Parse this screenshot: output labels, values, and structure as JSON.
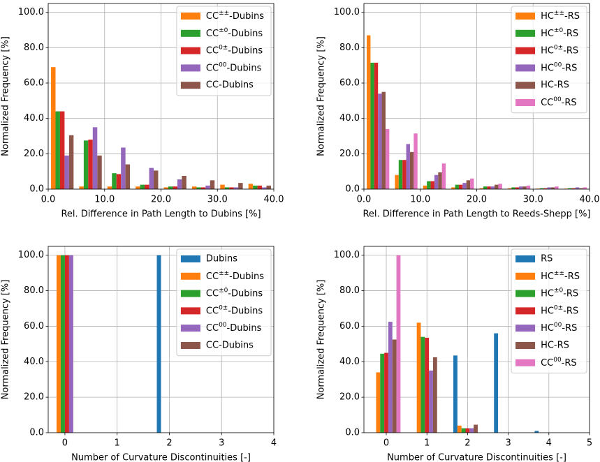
{
  "chart_data": [
    {
      "type": "histogram",
      "xlabel": "Rel. Difference in Path Length to Dubins [%]",
      "ylabel": "Normalized Frequency [%]",
      "bins": [
        0,
        5,
        10,
        15,
        20,
        25,
        30,
        35,
        40
      ],
      "series": [
        {
          "name": "CC±±-Dubins",
          "color": "#ff7f0e",
          "values": [
            69,
            1.5,
            1.5,
            1.5,
            1,
            1.5,
            2.5,
            3
          ]
        },
        {
          "name": "CC±0-Dubins",
          "color": "#2ca02c",
          "values": [
            44,
            27.5,
            9,
            2.5,
            1.5,
            1,
            1,
            2
          ]
        },
        {
          "name": "CC0±-Dubins",
          "color": "#d62728",
          "values": [
            44,
            28,
            8.5,
            2.5,
            1.5,
            1,
            1,
            2
          ]
        },
        {
          "name": "CC00-Dubins",
          "color": "#9467bd",
          "values": [
            19,
            35,
            23.5,
            12,
            5.5,
            2,
            1,
            1
          ]
        },
        {
          "name": "CC-Dubins",
          "color": "#8c564b",
          "values": [
            30.5,
            19,
            14,
            10.5,
            7.5,
            5,
            3.5,
            2
          ]
        }
      ],
      "xlim": [
        0,
        40
      ],
      "ylim": [
        0,
        105
      ],
      "xticks": [
        {
          "value": 0,
          "label": "0.0"
        },
        {
          "value": 10,
          "label": "10.0"
        },
        {
          "value": 20,
          "label": "20.0"
        },
        {
          "value": 30,
          "label": "30.0"
        },
        {
          "value": 40,
          "label": "40.0"
        }
      ],
      "yticks": [
        {
          "value": 0,
          "label": "0.0"
        },
        {
          "value": 20,
          "label": "20.0"
        },
        {
          "value": 40,
          "label": "40.0"
        },
        {
          "value": 60,
          "label": "60.0"
        },
        {
          "value": 80,
          "label": "80.0"
        },
        {
          "value": 100,
          "label": "100.0"
        }
      ],
      "grid": true,
      "legend": "upper right"
    },
    {
      "type": "histogram",
      "xlabel": "Rel. Difference in Path Length to Reeds-Shepp [%]",
      "ylabel": "Normalized Frequency [%]",
      "bins": [
        0,
        5,
        10,
        15,
        20,
        25,
        30,
        35,
        40
      ],
      "series": [
        {
          "name": "HC±±-RS",
          "color": "#ff7f0e",
          "values": [
            87,
            8,
            2,
            1,
            0.5,
            0.5,
            0.3,
            0.3
          ]
        },
        {
          "name": "HC±0-RS",
          "color": "#2ca02c",
          "values": [
            71.5,
            16.5,
            4.5,
            2.5,
            1.5,
            1,
            0.5,
            0.5
          ]
        },
        {
          "name": "HC0±-RS",
          "color": "#d62728",
          "values": [
            71.5,
            16.5,
            4.5,
            2.5,
            1.5,
            1,
            0.5,
            0.5
          ]
        },
        {
          "name": "HC00-RS",
          "color": "#9467bd",
          "values": [
            54,
            25.5,
            8,
            3.5,
            1.5,
            1.5,
            1,
            1
          ]
        },
        {
          "name": "HC-RS",
          "color": "#8c564b",
          "values": [
            55,
            21,
            9.5,
            5,
            2.5,
            1.5,
            1,
            0.5
          ]
        },
        {
          "name": "CC00-RS",
          "color": "#e377c2",
          "values": [
            34,
            31.5,
            14.5,
            6,
            3,
            2,
            1.5,
            1
          ]
        }
      ],
      "xlim": [
        0,
        40
      ],
      "ylim": [
        0,
        105
      ],
      "xticks": [
        {
          "value": 0,
          "label": "0.0"
        },
        {
          "value": 10,
          "label": "10.0"
        },
        {
          "value": 20,
          "label": "20.0"
        },
        {
          "value": 30,
          "label": "30.0"
        },
        {
          "value": 40,
          "label": "40.0"
        }
      ],
      "yticks": [
        {
          "value": 0,
          "label": "0.0"
        },
        {
          "value": 20,
          "label": "20.0"
        },
        {
          "value": 40,
          "label": "40.0"
        },
        {
          "value": 60,
          "label": "60.0"
        },
        {
          "value": 80,
          "label": "80.0"
        },
        {
          "value": 100,
          "label": "100.0"
        }
      ],
      "grid": true,
      "legend": "upper right"
    },
    {
      "type": "bar",
      "xlabel": "Number of Curvature Discontinuities [-]",
      "ylabel": "Normalized Frequency [%]",
      "x": [
        0,
        1,
        2,
        3,
        4
      ],
      "series": [
        {
          "name": "Dubins",
          "color": "#1f77b4",
          "values": [
            0,
            0,
            100,
            0,
            0
          ]
        },
        {
          "name": "CC±±-Dubins",
          "color": "#ff7f0e",
          "values": [
            100,
            0,
            0,
            0,
            0
          ]
        },
        {
          "name": "CC±0-Dubins",
          "color": "#2ca02c",
          "values": [
            100,
            0,
            0,
            0,
            0
          ]
        },
        {
          "name": "CC0±-Dubins",
          "color": "#d62728",
          "values": [
            100,
            0,
            0,
            0,
            0
          ]
        },
        {
          "name": "CC00-Dubins",
          "color": "#9467bd",
          "values": [
            100,
            0,
            0,
            0,
            0
          ]
        },
        {
          "name": "CC-Dubins",
          "color": "#8c564b",
          "values": [
            0,
            0,
            0,
            0,
            0
          ]
        }
      ],
      "xlim": [
        -0.32,
        4
      ],
      "ylim": [
        0,
        105
      ],
      "xticks": [
        0,
        1,
        2,
        3,
        4
      ],
      "yticks": [
        {
          "value": 0,
          "label": "0.0"
        },
        {
          "value": 20,
          "label": "20.0"
        },
        {
          "value": 40,
          "label": "40.0"
        },
        {
          "value": 60,
          "label": "60.0"
        },
        {
          "value": 80,
          "label": "80.0"
        },
        {
          "value": 100,
          "label": "100.0"
        }
      ],
      "grid": true,
      "legend": "upper right"
    },
    {
      "type": "bar",
      "xlabel": "Number of Curvature Discontinuities [-]",
      "ylabel": "Normalized Frequency [%]",
      "x": [
        0,
        1,
        2,
        3,
        4,
        5
      ],
      "series": [
        {
          "name": "RS",
          "color": "#1f77b4",
          "values": [
            0,
            0,
            43.5,
            56,
            1,
            0
          ]
        },
        {
          "name": "HC±±-RS",
          "color": "#ff7f0e",
          "values": [
            34,
            62,
            4,
            0,
            0,
            0
          ]
        },
        {
          "name": "HC±0-RS",
          "color": "#2ca02c",
          "values": [
            44.5,
            54,
            2.5,
            0,
            0,
            0
          ]
        },
        {
          "name": "HC0±-RS",
          "color": "#d62728",
          "values": [
            45,
            53.5,
            2.5,
            0,
            0,
            0
          ]
        },
        {
          "name": "HC00-RS",
          "color": "#9467bd",
          "values": [
            62.5,
            35,
            2.5,
            0,
            0,
            0
          ]
        },
        {
          "name": "HC-RS",
          "color": "#8c564b",
          "values": [
            52.5,
            42.5,
            4.5,
            0,
            0,
            0
          ]
        },
        {
          "name": "CC00-RS",
          "color": "#e377c2",
          "values": [
            100,
            0,
            0,
            0,
            0,
            0
          ]
        }
      ],
      "xlim": [
        -0.55,
        5
      ],
      "ylim": [
        0,
        105
      ],
      "xticks": [
        0,
        1,
        2,
        3,
        4,
        5
      ],
      "yticks": [
        {
          "value": 0,
          "label": "0.0"
        },
        {
          "value": 20,
          "label": "20.0"
        },
        {
          "value": 40,
          "label": "40.0"
        },
        {
          "value": 60,
          "label": "60.0"
        },
        {
          "value": 80,
          "label": "80.0"
        },
        {
          "value": 100,
          "label": "100.0"
        }
      ],
      "grid": true,
      "legend": "upper right"
    }
  ]
}
